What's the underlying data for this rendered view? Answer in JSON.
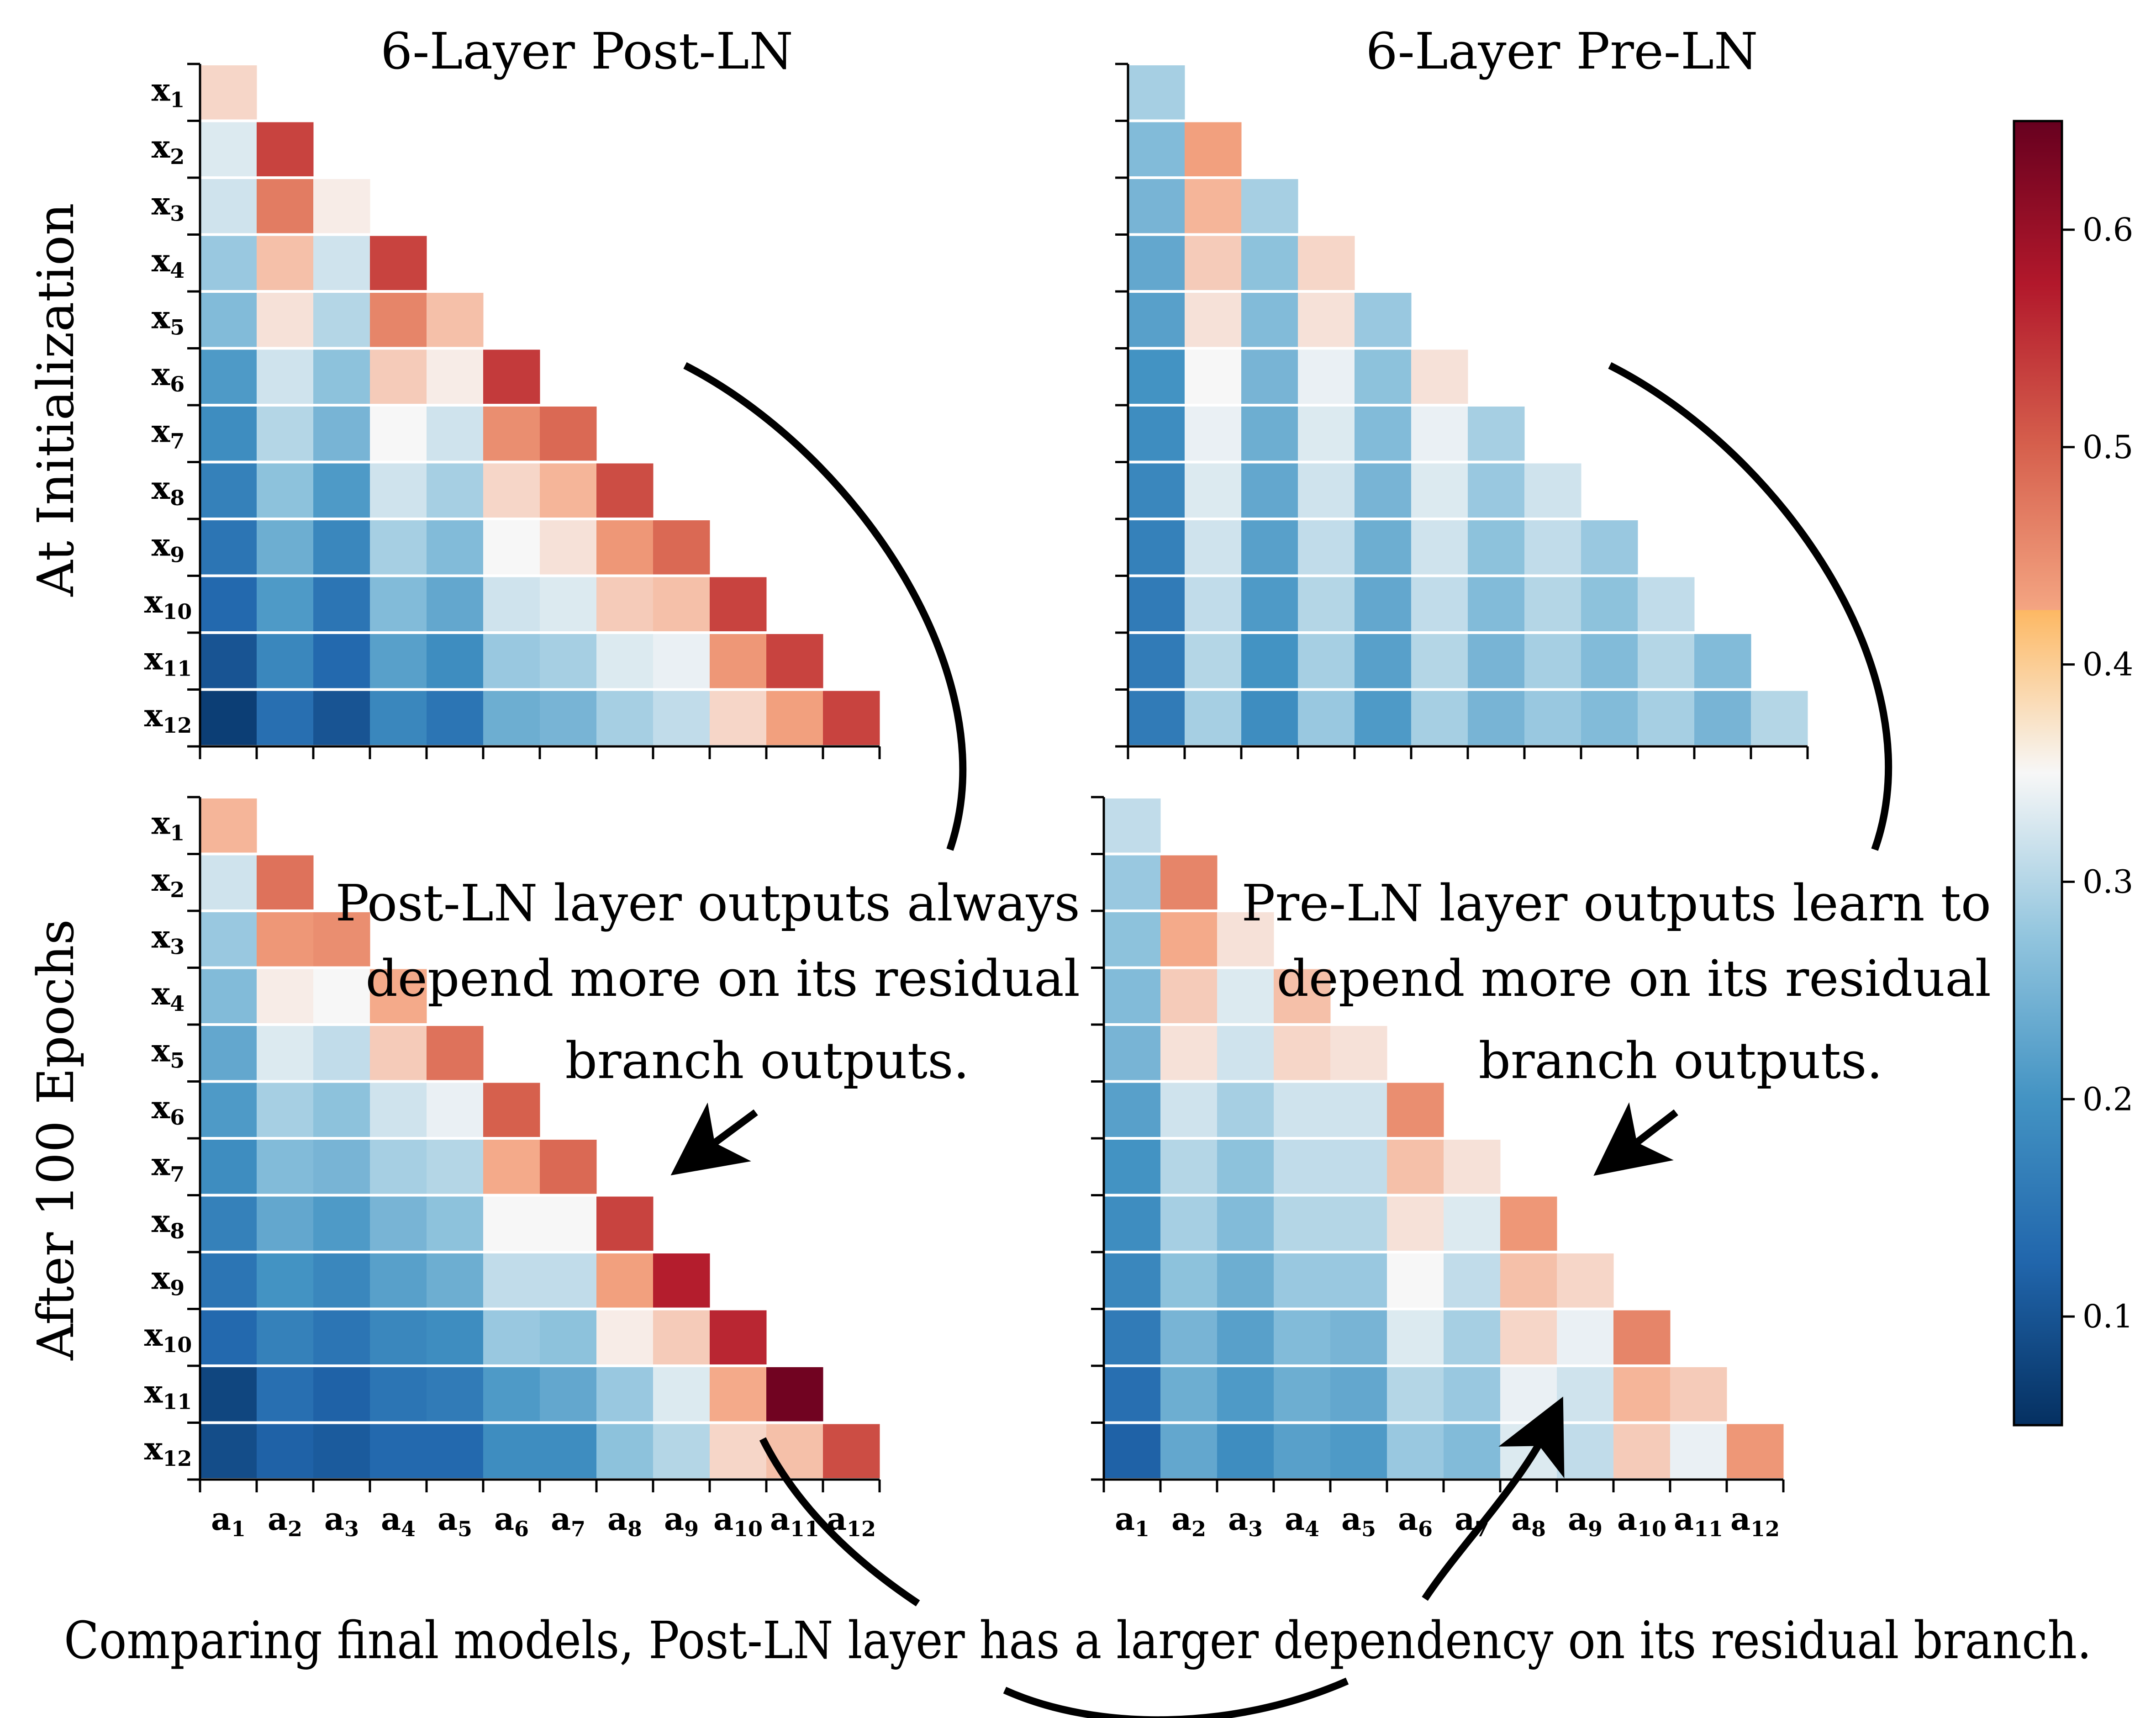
{
  "chart_data": {
    "type": "heatmap",
    "row_labels": [
      "x1",
      "x2",
      "x3",
      "x4",
      "x5",
      "x6",
      "x7",
      "x8",
      "x9",
      "x10",
      "x11",
      "x12"
    ],
    "col_labels": [
      "a1",
      "a2",
      "a3",
      "a4",
      "a5",
      "a6",
      "a7",
      "a8",
      "a9",
      "a10",
      "a11",
      "a12"
    ],
    "row_titles": [
      "At Initialization",
      "After 100 Epochs"
    ],
    "col_titles": [
      "6-Layer Post-LN",
      "6-Layer Pre-LN"
    ],
    "colorbar": {
      "min": 0.05,
      "max": 0.65,
      "ticks": [
        0.1,
        0.2,
        0.3,
        0.4,
        0.5,
        0.6
      ],
      "colormap": "RdBu_r"
    },
    "panels": [
      {
        "name": "Post-LN at initialization",
        "values": [
          [
            0.38
          ],
          [
            0.33,
            0.53
          ],
          [
            0.32,
            0.47,
            0.36
          ],
          [
            0.28,
            0.4,
            0.32,
            0.53
          ],
          [
            0.26,
            0.37,
            0.3,
            0.46,
            0.4
          ],
          [
            0.21,
            0.32,
            0.27,
            0.39,
            0.36,
            0.54
          ],
          [
            0.19,
            0.3,
            0.25,
            0.35,
            0.32,
            0.45,
            0.49
          ],
          [
            0.17,
            0.27,
            0.21,
            0.32,
            0.29,
            0.38,
            0.41,
            0.52
          ],
          [
            0.15,
            0.24,
            0.18,
            0.29,
            0.26,
            0.35,
            0.37,
            0.44,
            0.49
          ],
          [
            0.13,
            0.21,
            0.15,
            0.26,
            0.23,
            0.32,
            0.33,
            0.39,
            0.4,
            0.53
          ],
          [
            0.1,
            0.18,
            0.13,
            0.22,
            0.19,
            0.28,
            0.29,
            0.33,
            0.34,
            0.44,
            0.53
          ],
          [
            0.07,
            0.14,
            0.1,
            0.18,
            0.15,
            0.24,
            0.25,
            0.29,
            0.31,
            0.38,
            0.43,
            0.53
          ]
        ]
      },
      {
        "name": "Pre-LN at initialization",
        "values": [
          [
            0.29
          ],
          [
            0.26,
            0.43
          ],
          [
            0.25,
            0.41,
            0.29
          ],
          [
            0.23,
            0.39,
            0.27,
            0.38
          ],
          [
            0.22,
            0.37,
            0.26,
            0.37,
            0.28
          ],
          [
            0.2,
            0.35,
            0.25,
            0.34,
            0.27,
            0.37
          ],
          [
            0.19,
            0.34,
            0.24,
            0.33,
            0.26,
            0.34,
            0.29
          ],
          [
            0.18,
            0.33,
            0.23,
            0.32,
            0.25,
            0.33,
            0.28,
            0.32
          ],
          [
            0.17,
            0.32,
            0.22,
            0.31,
            0.24,
            0.32,
            0.27,
            0.31,
            0.28
          ],
          [
            0.16,
            0.31,
            0.21,
            0.3,
            0.23,
            0.31,
            0.26,
            0.3,
            0.27,
            0.31
          ],
          [
            0.16,
            0.3,
            0.2,
            0.29,
            0.22,
            0.3,
            0.25,
            0.29,
            0.26,
            0.3,
            0.26
          ],
          [
            0.16,
            0.29,
            0.19,
            0.28,
            0.21,
            0.29,
            0.25,
            0.28,
            0.26,
            0.29,
            0.25,
            0.3
          ]
        ]
      },
      {
        "name": "Post-LN after 100 epochs",
        "values": [
          [
            0.41
          ],
          [
            0.32,
            0.48
          ],
          [
            0.28,
            0.44,
            0.45
          ],
          [
            0.26,
            0.36,
            0.35,
            0.42
          ],
          [
            0.23,
            0.33,
            0.31,
            0.39,
            0.48
          ],
          [
            0.21,
            0.29,
            0.27,
            0.32,
            0.34,
            0.5
          ],
          [
            0.19,
            0.26,
            0.25,
            0.29,
            0.3,
            0.42,
            0.49
          ],
          [
            0.17,
            0.23,
            0.21,
            0.25,
            0.27,
            0.35,
            0.35,
            0.53
          ],
          [
            0.15,
            0.2,
            0.18,
            0.22,
            0.24,
            0.31,
            0.31,
            0.43,
            0.57
          ],
          [
            0.13,
            0.17,
            0.15,
            0.18,
            0.19,
            0.28,
            0.27,
            0.36,
            0.39,
            0.56
          ],
          [
            0.08,
            0.14,
            0.12,
            0.15,
            0.16,
            0.21,
            0.23,
            0.28,
            0.33,
            0.42,
            0.64
          ],
          [
            0.09,
            0.12,
            0.11,
            0.13,
            0.13,
            0.19,
            0.19,
            0.27,
            0.3,
            0.38,
            0.4,
            0.52
          ]
        ]
      },
      {
        "name": "Pre-LN after 100 epochs",
        "values": [
          [
            0.31
          ],
          [
            0.28,
            0.46
          ],
          [
            0.27,
            0.42,
            0.37
          ],
          [
            0.26,
            0.39,
            0.33,
            0.4
          ],
          [
            0.25,
            0.37,
            0.32,
            0.38,
            0.37
          ],
          [
            0.22,
            0.32,
            0.29,
            0.32,
            0.32,
            0.45
          ],
          [
            0.2,
            0.3,
            0.27,
            0.31,
            0.31,
            0.4,
            0.37
          ],
          [
            0.19,
            0.29,
            0.26,
            0.3,
            0.3,
            0.37,
            0.33,
            0.44
          ],
          [
            0.18,
            0.27,
            0.24,
            0.28,
            0.28,
            0.35,
            0.31,
            0.4,
            0.38
          ],
          [
            0.16,
            0.25,
            0.22,
            0.26,
            0.25,
            0.33,
            0.29,
            0.38,
            0.34,
            0.46
          ],
          [
            0.14,
            0.24,
            0.21,
            0.24,
            0.23,
            0.3,
            0.28,
            0.34,
            0.32,
            0.41,
            0.39
          ],
          [
            0.12,
            0.23,
            0.19,
            0.22,
            0.21,
            0.28,
            0.26,
            0.33,
            0.31,
            0.39,
            0.34,
            0.44
          ]
        ]
      }
    ]
  },
  "annotations": {
    "post_ln_note": [
      "Post-LN layer outputs always",
      "depend more on its residual",
      "branch outputs."
    ],
    "pre_ln_note": [
      "Pre-LN layer outputs learn to",
      "depend more on its residual",
      "branch outputs."
    ],
    "bottom_note": "Comparing final models, Post-LN layer has a larger dependency on its residual branch."
  }
}
